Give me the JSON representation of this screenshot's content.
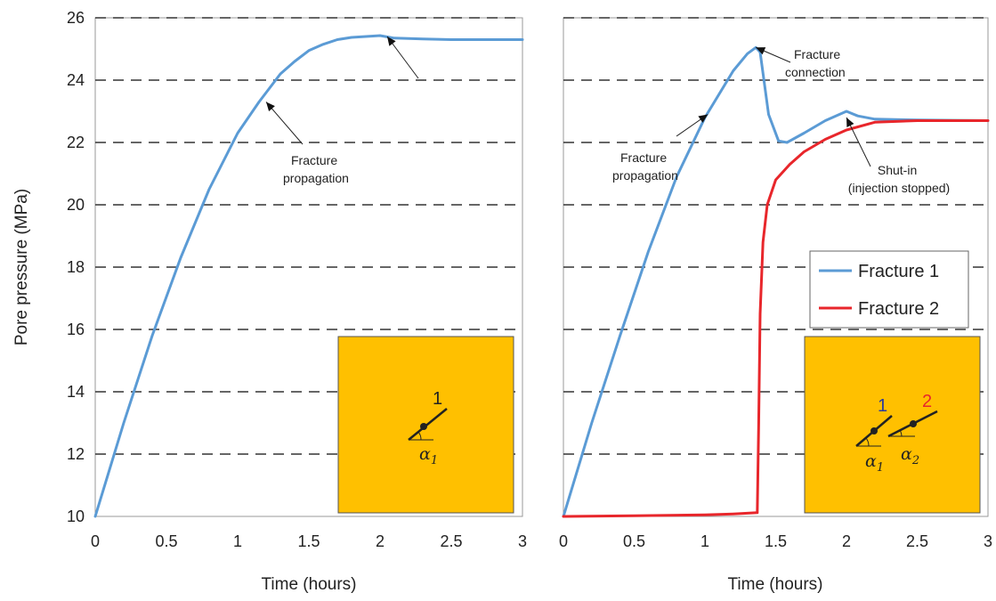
{
  "chart_data": [
    {
      "type": "line",
      "panel": "left",
      "title": "",
      "xlabel": "Time (hours)",
      "ylabel": "Pore pressure (MPa)",
      "xlim": [
        0,
        3
      ],
      "ylim": [
        10,
        26
      ],
      "xticks": [
        0,
        0.5,
        1,
        1.5,
        2,
        2.5,
        3
      ],
      "xtick_labels": [
        "0",
        "0.5",
        "1",
        "1.5",
        "2",
        "2.5",
        "3"
      ],
      "yticks": [
        10,
        12,
        14,
        16,
        18,
        20,
        22,
        24,
        26
      ],
      "ytick_labels": [
        "10",
        "12",
        "14",
        "16",
        "18",
        "20",
        "22",
        "24",
        "26"
      ],
      "grid": "horizontal dashed",
      "series": [
        {
          "name": "Fracture 1",
          "color": "#5b9bd5",
          "x": [
            0,
            0.2,
            0.4,
            0.6,
            0.8,
            1.0,
            1.15,
            1.25,
            1.3,
            1.4,
            1.5,
            1.6,
            1.7,
            1.8,
            1.9,
            2.0,
            2.1,
            2.3,
            2.5,
            2.8,
            3.0
          ],
          "y": [
            10.0,
            13.0,
            15.8,
            18.3,
            20.5,
            22.3,
            23.3,
            23.9,
            24.2,
            24.6,
            24.95,
            25.15,
            25.3,
            25.37,
            25.4,
            25.43,
            25.35,
            25.32,
            25.3,
            25.3,
            25.3
          ]
        }
      ],
      "annotations": [
        {
          "lines": [
            "Fracture",
            "propagation"
          ],
          "arrow_to": [
            1.2,
            23.3
          ]
        },
        {
          "lines": [],
          "arrow_to": [
            2.05,
            25.4
          ]
        }
      ],
      "inset": {
        "fill": "#ffc000",
        "fractures": [
          {
            "number": "1",
            "number_color": "#222222",
            "angle_symbol": "α",
            "angle_subscript": "1"
          }
        ]
      }
    },
    {
      "type": "line",
      "panel": "right",
      "title": "",
      "xlabel": "Time (hours)",
      "ylabel": "",
      "xlim": [
        0,
        3
      ],
      "ylim": [
        10,
        26
      ],
      "xticks": [
        0,
        0.5,
        1,
        1.5,
        2,
        2.5,
        3
      ],
      "xtick_labels": [
        "0",
        "0.5",
        "1",
        "1.5",
        "2",
        "2.5",
        "3"
      ],
      "grid": "horizontal dashed",
      "legend": "middle-right",
      "series": [
        {
          "name": "Fracture 1",
          "color": "#5b9bd5",
          "x": [
            0,
            0.2,
            0.4,
            0.6,
            0.8,
            1.0,
            1.2,
            1.3,
            1.36,
            1.39,
            1.45,
            1.52,
            1.58,
            1.7,
            1.85,
            2.0,
            2.08,
            2.2,
            2.5,
            3.0
          ],
          "y": [
            10.0,
            13.0,
            15.8,
            18.5,
            20.9,
            22.8,
            24.3,
            24.85,
            25.05,
            24.9,
            22.9,
            22.05,
            22.0,
            22.3,
            22.7,
            23.0,
            22.85,
            22.75,
            22.72,
            22.7
          ]
        },
        {
          "name": "Fracture 2",
          "color": "#e8262b",
          "x": [
            0,
            0.5,
            1.0,
            1.2,
            1.37,
            1.38,
            1.39,
            1.41,
            1.44,
            1.5,
            1.6,
            1.7,
            1.85,
            2.0,
            2.2,
            2.5,
            3.0
          ],
          "y": [
            10.0,
            10.02,
            10.05,
            10.08,
            10.12,
            13.0,
            16.5,
            18.8,
            20.0,
            20.8,
            21.3,
            21.7,
            22.1,
            22.4,
            22.65,
            22.7,
            22.7
          ]
        }
      ],
      "annotations": [
        {
          "lines": [
            "Fracture",
            "connection"
          ],
          "arrow_to": [
            1.36,
            25.05
          ]
        },
        {
          "lines": [
            "Fracture",
            "propagation"
          ],
          "arrow_to": [
            1.02,
            22.9
          ]
        },
        {
          "lines": [
            "Shut-in",
            "(injection stopped)"
          ],
          "arrow_to": [
            2.0,
            22.8
          ]
        }
      ],
      "inset": {
        "fill": "#ffc000",
        "fractures": [
          {
            "number": "1",
            "number_color": "#2b3a9e",
            "angle_symbol": "α",
            "angle_subscript": "1"
          },
          {
            "number": "2",
            "number_color": "#e8262b",
            "angle_symbol": "α",
            "angle_subscript": "2"
          }
        ]
      }
    }
  ]
}
